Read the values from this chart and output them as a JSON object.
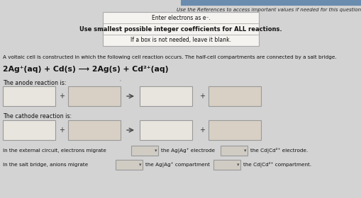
{
  "bg_color": "#d3d3d3",
  "top_bar_color": "#6a8caf",
  "header_text": "Use the References to access important values if needed for this question.",
  "box_line1": "Enter electrons as e⁻.",
  "box_line2": "Use smallest possible integer coefficients for ALL reactions.",
  "box_line3": "If a box is not needed, leave it blank.",
  "intro_text": "A voltaic cell is constructed in which the following cell reaction occurs. The half-cell compartments are connected by a salt bridge.",
  "reaction_main": "2Ag",
  "reaction_text": "2Ag⁺(aq) + Cd(s) ⟶ 2Ag(s) + Cd²⁺(aq)",
  "anode_label": "The anode reaction is:",
  "cathode_label": "The cathode reaction is:",
  "external_text": "In the external circuit, electrons migrate",
  "external_mid": "the Ag|Ag⁺ electrode",
  "external_end": "the Cd|Cd²⁺ electrode.",
  "salt_text": "In the salt bridge, anions migrate",
  "salt_mid": "the Ag|Ag⁺ compartment",
  "salt_end": "the Cd|Cd²⁺ compartment.",
  "box_fill1": "#e8e4de",
  "box_fill2": "#d8d0c4",
  "white_box": "#f0eeea",
  "dropdown_fill": "#d0ccc4",
  "text_color": "#1a1a1a",
  "box_edge": "#999999",
  "info_box_bg": "#f5f3f0"
}
